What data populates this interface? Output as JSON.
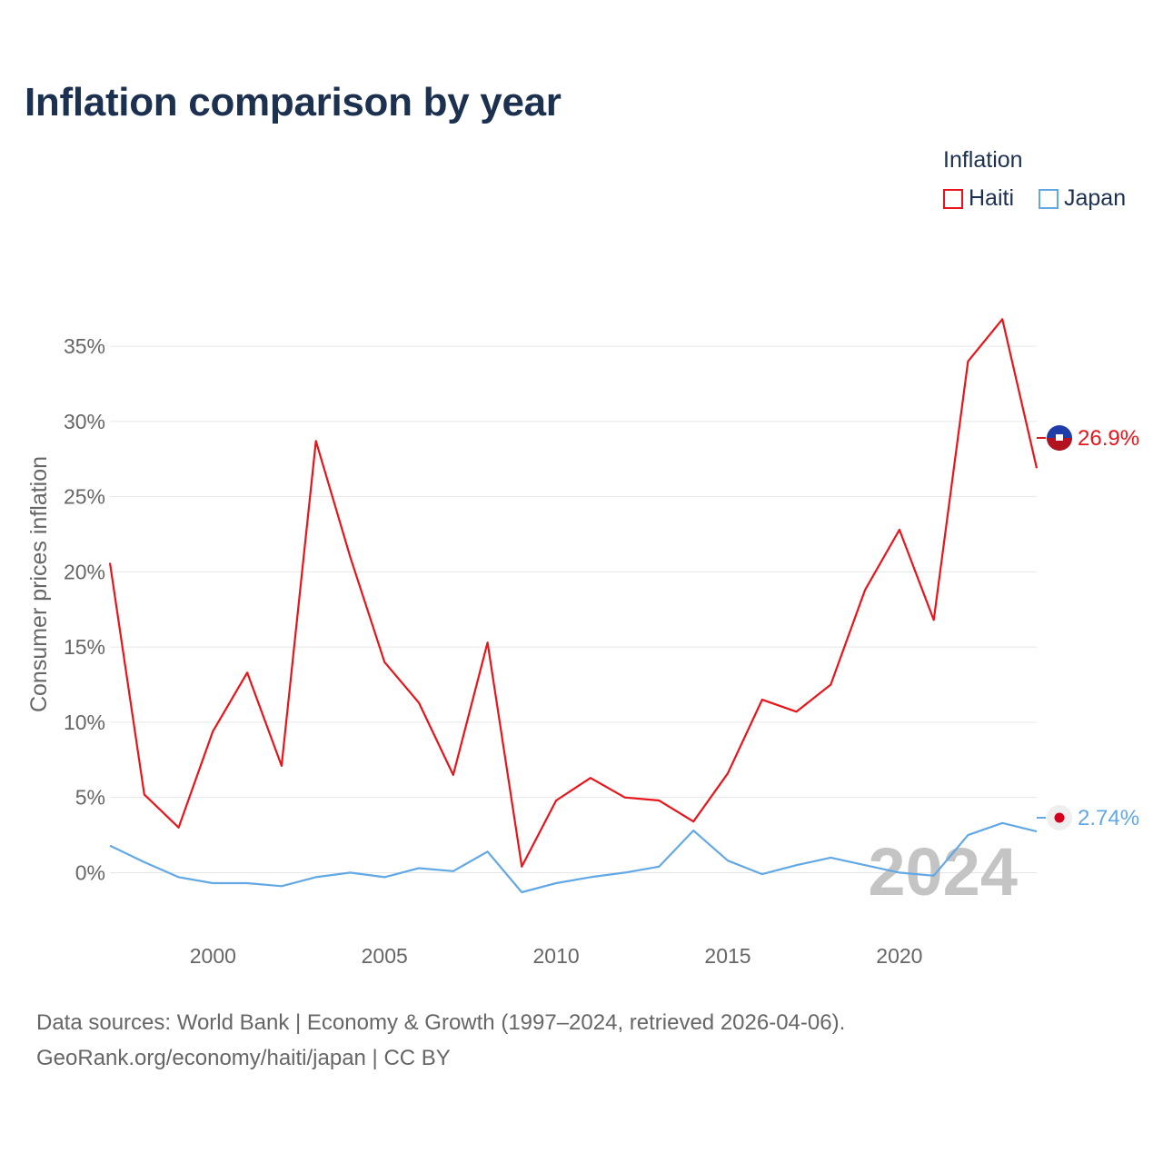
{
  "title": "Inflation comparison by year",
  "legend": {
    "title": "Inflation",
    "items": [
      {
        "label": "Haiti",
        "color": "#e8141a"
      },
      {
        "label": "Japan",
        "color": "#62a8e5"
      }
    ]
  },
  "watermark_year": "2024",
  "source": {
    "line1": "Data sources: World Bank | Economy & Growth (1997–2024, retrieved 2026-04-06).",
    "line2": "GeoRank.org/economy/haiti/japan | CC BY"
  },
  "end_labels": {
    "haiti": "26.9%",
    "japan": "2.74%"
  },
  "chart_data": {
    "type": "line",
    "title": "Inflation comparison by year",
    "ylabel": "Consumer prices inflation",
    "xlabel": "",
    "ylim": [
      -3.9,
      39.9
    ],
    "xlim": [
      1997,
      2024
    ],
    "yticks": [
      0,
      5,
      10,
      15,
      20,
      25,
      30,
      35
    ],
    "ytick_labels": [
      "0%",
      "5%",
      "10%",
      "15%",
      "20%",
      "25%",
      "30%",
      "35%"
    ],
    "xticks": [
      2000,
      2005,
      2010,
      2015,
      2020
    ],
    "xtick_labels": [
      "2000",
      "2005",
      "2010",
      "2015",
      "2020"
    ],
    "grid": true,
    "legend_position": "top-right",
    "x": [
      1997,
      1998,
      1999,
      2000,
      2001,
      2002,
      2003,
      2004,
      2005,
      2006,
      2007,
      2008,
      2009,
      2010,
      2011,
      2012,
      2013,
      2014,
      2015,
      2016,
      2017,
      2018,
      2019,
      2020,
      2021,
      2022,
      2023,
      2024
    ],
    "series": [
      {
        "name": "Haiti",
        "color": "#e8141a",
        "values": [
          20.6,
          5.2,
          3.0,
          9.4,
          13.3,
          7.1,
          28.7,
          21.0,
          14.0,
          11.3,
          6.5,
          15.3,
          0.4,
          4.8,
          6.3,
          5.0,
          4.8,
          3.4,
          6.6,
          11.5,
          10.7,
          12.5,
          18.8,
          22.8,
          16.8,
          34.0,
          36.8,
          26.9
        ]
      },
      {
        "name": "Japan",
        "color": "#62a8e5",
        "values": [
          1.8,
          0.7,
          -0.3,
          -0.7,
          -0.7,
          -0.9,
          -0.3,
          0.0,
          -0.3,
          0.3,
          0.1,
          1.4,
          -1.3,
          -0.7,
          -0.3,
          0.0,
          0.4,
          2.8,
          0.8,
          -0.1,
          0.5,
          1.0,
          0.5,
          0.0,
          -0.2,
          2.5,
          3.3,
          2.74
        ]
      }
    ]
  }
}
